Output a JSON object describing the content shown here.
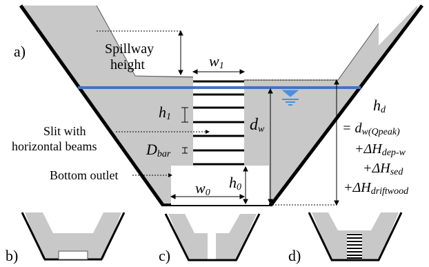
{
  "panels": {
    "a": "a)",
    "b": "b)",
    "c": "c)",
    "d": "d)"
  },
  "labels": {
    "spillway_line1": "Spillway",
    "spillway_line2": "height",
    "slit_line1": "Slit with",
    "slit_line2": "horizontal beams",
    "bottom_outlet": "Bottom outlet"
  },
  "symbols": {
    "w1_base": "w",
    "w1_sub": "1",
    "h1_base": "h",
    "h1_sub": "1",
    "dbar_base": "D",
    "dbar_sub": "bar",
    "dw_base": "d",
    "dw_sub": "w",
    "h0_base": "h",
    "h0_sub": "0",
    "w0_base": "w",
    "w0_sub": "0"
  },
  "formula": {
    "hd_base": "h",
    "hd_sub": "d",
    "line2_prefix": "= d",
    "line2_sub": "w(Qpeak)",
    "line3_prefix": "+ΔH",
    "line3_sub": "dep-w",
    "line4_prefix": "+ΔH",
    "line4_sub": "sed",
    "line5_prefix": "+ΔH",
    "line5_sub": "driftwood"
  },
  "colors": {
    "dam_fill": "#c8c8c8",
    "water_line": "#4472c4",
    "water_symbol": "#4a90d9",
    "outline": "#000000"
  }
}
